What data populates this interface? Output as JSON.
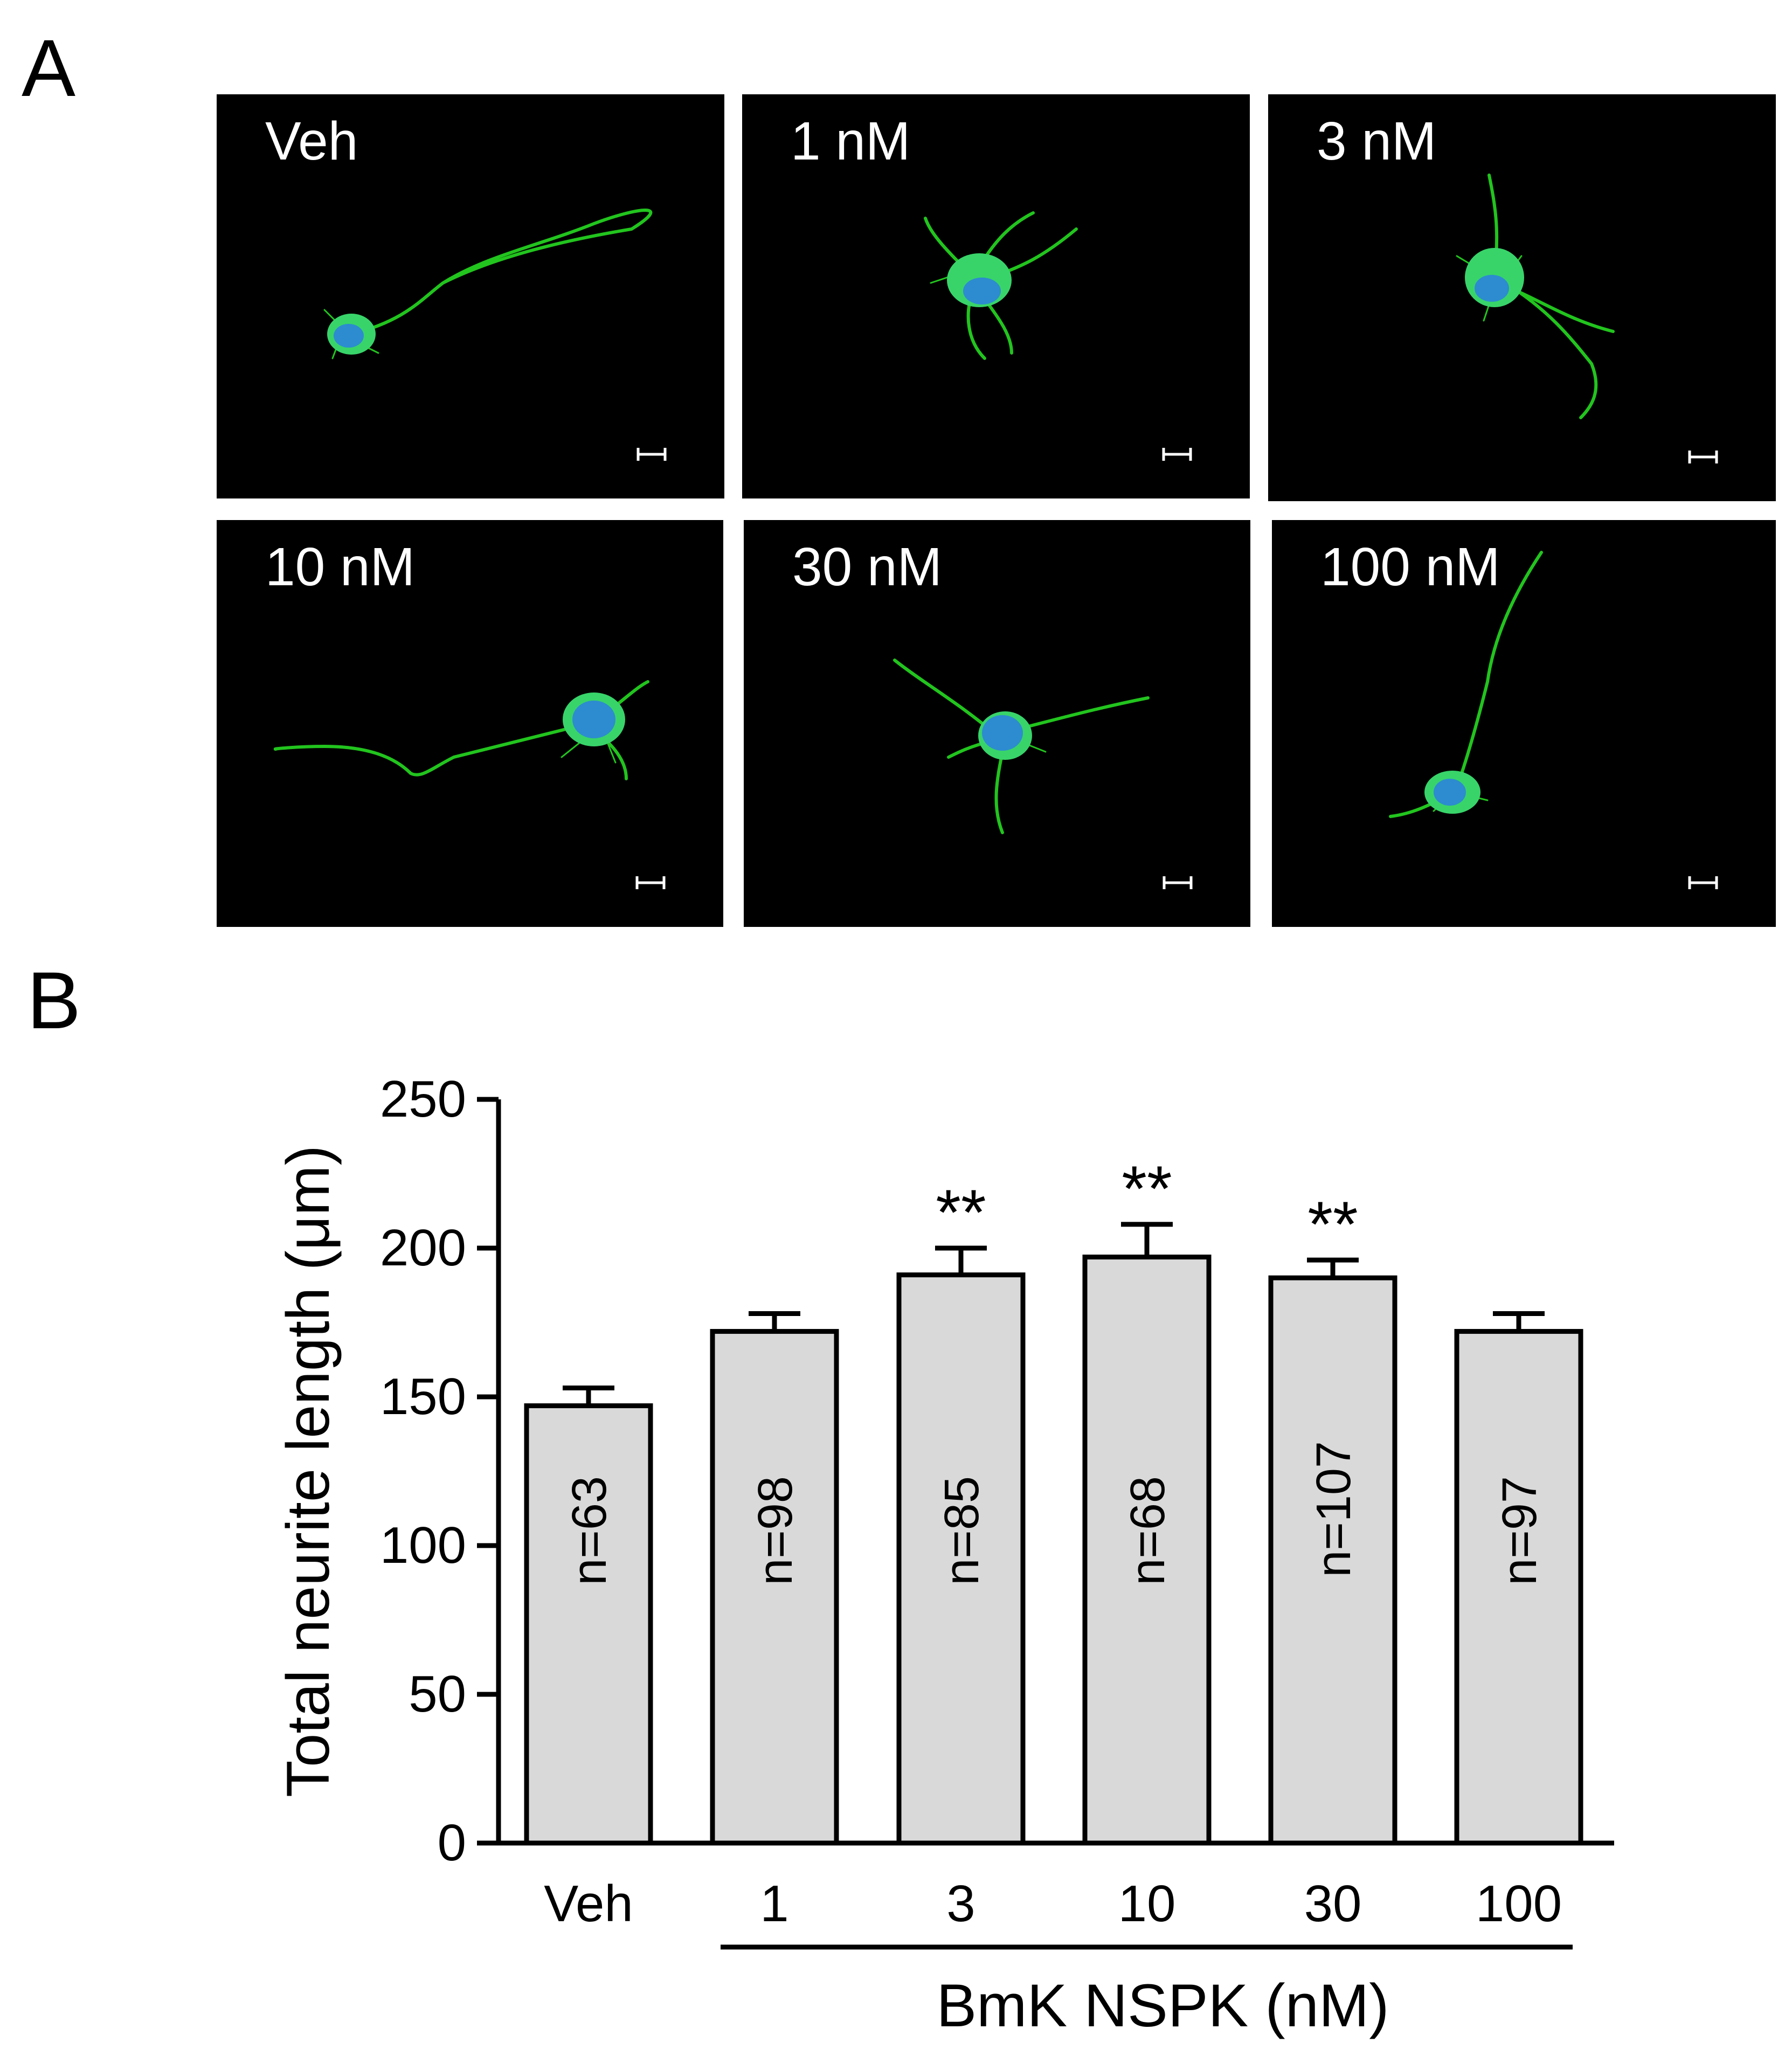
{
  "panel_a": {
    "letter": "A",
    "images": [
      {
        "label": "Veh",
        "shape": "veh"
      },
      {
        "label": "1 nM",
        "shape": "n1"
      },
      {
        "label": "3 nM",
        "shape": "n3"
      },
      {
        "label": "10 nM",
        "shape": "n10"
      },
      {
        "label": "30 nM",
        "shape": "n30"
      },
      {
        "label": "100 nM",
        "shape": "n100"
      }
    ]
  },
  "panel_b": {
    "letter": "B"
  },
  "chart_data": {
    "type": "bar",
    "categories": [
      "Veh",
      "1",
      "3",
      "10",
      "30",
      "100"
    ],
    "values": [
      147,
      172,
      191,
      197,
      190,
      172
    ],
    "errors": [
      6,
      6,
      9,
      11,
      6,
      6
    ],
    "n_labels": [
      "n=63",
      "n=98",
      "n=85",
      "n=68",
      "n=107",
      "n=97"
    ],
    "significance": [
      "",
      "",
      "**",
      "**",
      "**",
      ""
    ],
    "ylabel": "Total neurite length (μm)",
    "yticks": [
      0,
      50,
      100,
      150,
      200,
      250
    ],
    "ylim": [
      0,
      250
    ],
    "group_label": "BmK NSPK (nM)",
    "bar_color": "#d9d9d9",
    "grid": false
  },
  "colors": {
    "neurite": "#22c41e",
    "soma": "#38d46a",
    "nucleus": "#2a7fe0",
    "background": "#000000"
  }
}
